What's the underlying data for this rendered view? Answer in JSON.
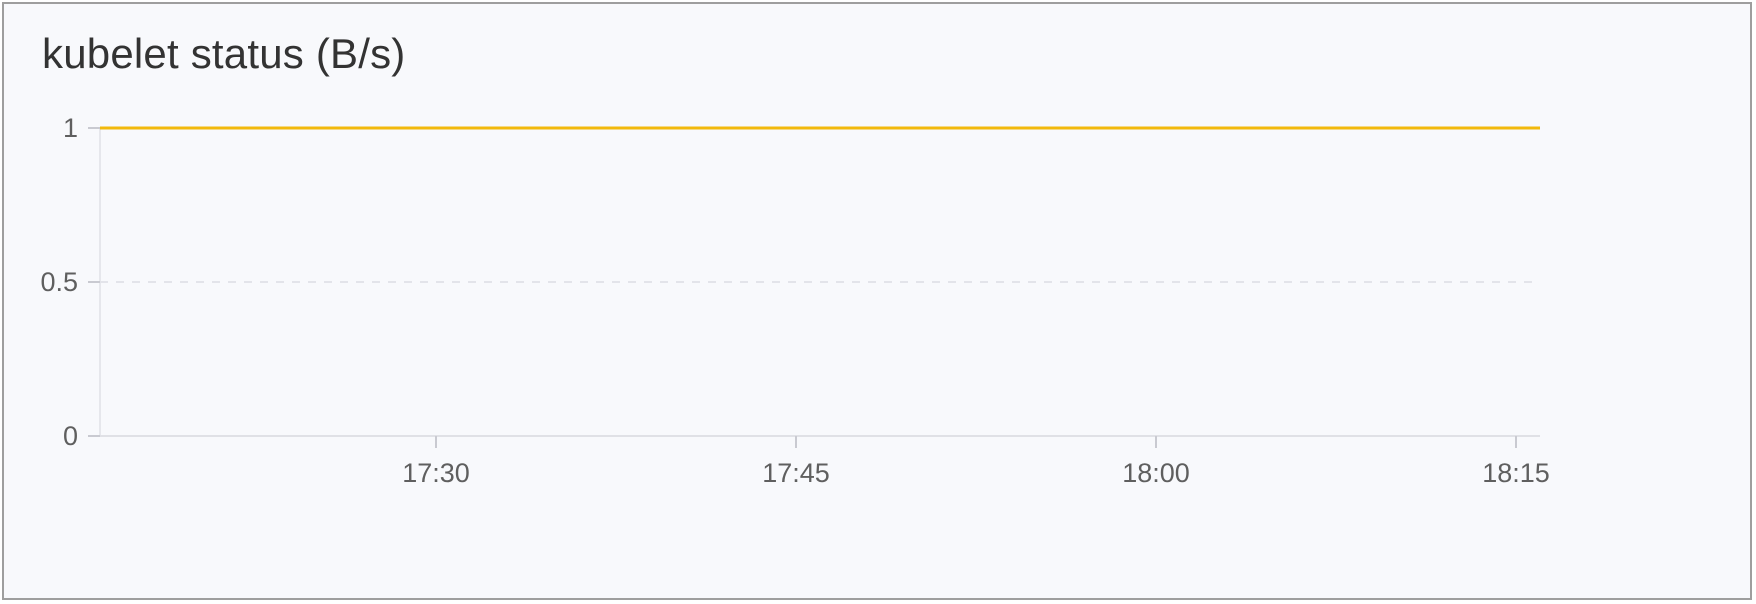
{
  "panel": {
    "title": "kubelet status (B/s)"
  },
  "chart_data": {
    "type": "line",
    "title": "kubelet status (B/s)",
    "xlabel": "",
    "ylabel": "",
    "x_tick_labels": [
      "17:30",
      "17:45",
      "18:00",
      "18:15"
    ],
    "y_tick_labels": [
      "0",
      "0.5",
      "1"
    ],
    "ylim": [
      0,
      1
    ],
    "xlim": [
      "17:16",
      "18:16"
    ],
    "grid": true,
    "legend": "none",
    "series": [
      {
        "color": "#f2b90c",
        "x": [
          "17:16",
          "18:16"
        ],
        "values": [
          1,
          1
        ]
      }
    ]
  }
}
